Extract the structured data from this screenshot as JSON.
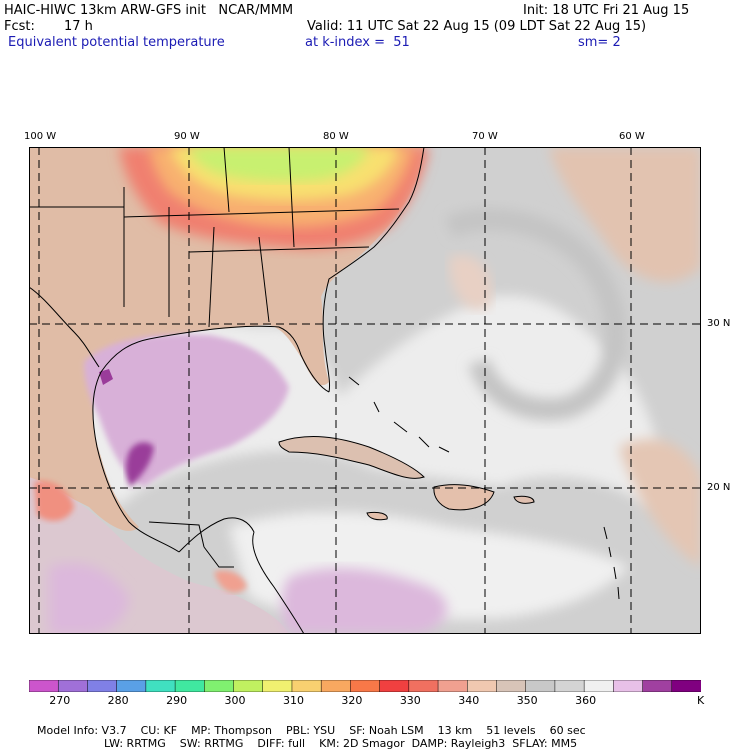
{
  "header": {
    "model_title": "HAIC-HIWC 13km ARW-GFS init   NCAR/MMM",
    "init": "Init: 18 UTC Fri 21 Aug 15",
    "fcst_label": "Fcst:",
    "fcst_value": "17 h",
    "valid": "Valid: 11 UTC Sat 22 Aug 15 (09 LDT Sat 22 Aug 15)",
    "field": "Equivalent potential temperature",
    "level": "at k-index =  51",
    "smooth": "sm= 2"
  },
  "axes": {
    "lon_ticks": [
      "100 W",
      "90 W",
      "80 W",
      "70 W",
      "60 W"
    ],
    "lat_ticks": [
      "30 N",
      "20 N"
    ]
  },
  "colorbar": {
    "unit": "K",
    "labels": [
      "270",
      "280",
      "290",
      "300",
      "310",
      "320",
      "330",
      "340",
      "350",
      "360"
    ],
    "colors": [
      "#cc55cc",
      "#a070d8",
      "#8080e6",
      "#5aa0e6",
      "#40e0c0",
      "#40e8a0",
      "#80f070",
      "#c0f060",
      "#f0f070",
      "#f8d070",
      "#f8a860",
      "#f87848",
      "#f04040",
      "#f07060",
      "#f0a090",
      "#f0c8b0",
      "#d8c4b8",
      "#c8c8c8",
      "#d4d4d4",
      "#f0f0f0",
      "#e8c0e8",
      "#a040a0",
      "#800080"
    ]
  },
  "footer": {
    "line1": [
      "Model Info: V3.7",
      "CU: KF",
      "MP: Thompson",
      "PBL: YSU",
      "SF: Noah LSM",
      "13 km",
      "51 levels",
      "60 sec"
    ],
    "line2": [
      "LW: RRTMG",
      "SW: RRTMG",
      "DIFF: full",
      "KM: 2D Smagor",
      "DAMP: Rayleigh3",
      "SFLAY: MM5"
    ]
  }
}
